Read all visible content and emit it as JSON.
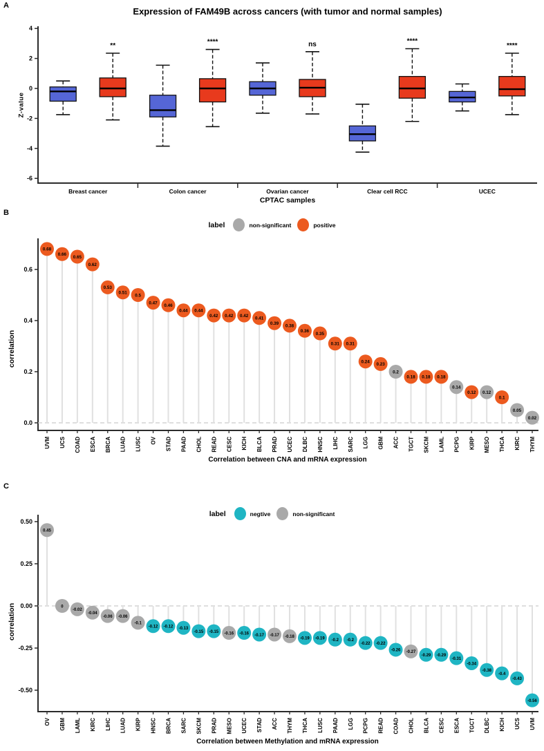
{
  "chart_data": [
    {
      "panel_label": "A",
      "type": "boxplot",
      "title": "Expression of FAM49B across cancers (with tumor and normal samples)",
      "ylabel": "Z-value",
      "xlabel": "CPTAC samples",
      "yticks": [
        4,
        2,
        0,
        -2,
        -4,
        -6
      ],
      "ylim": [
        4.3,
        -6.3
      ],
      "colors": {
        "normal": "#5566D6",
        "tumor": "#E83A1D"
      },
      "groups": [
        {
          "name": "Breast cancer",
          "significance": "**",
          "normal": {
            "low": -1.75,
            "q1": -0.85,
            "median": -0.2,
            "q3": 0.1,
            "high": 0.5
          },
          "tumor": {
            "low": -2.1,
            "q1": -0.55,
            "median": 0.0,
            "q3": 0.7,
            "high": 2.35
          }
        },
        {
          "name": "Colon cancer",
          "significance": "****",
          "normal": {
            "low": -3.85,
            "q1": -1.9,
            "median": -1.45,
            "q3": -0.45,
            "high": 1.55
          },
          "tumor": {
            "low": -2.55,
            "q1": -0.9,
            "median": 0.0,
            "q3": 0.65,
            "high": 2.6
          }
        },
        {
          "name": "Ovarian cancer",
          "significance": "ns",
          "normal": {
            "low": -1.65,
            "q1": -0.45,
            "median": 0.0,
            "q3": 0.45,
            "high": 1.7
          },
          "tumor": {
            "low": -1.7,
            "q1": -0.55,
            "median": 0.05,
            "q3": 0.6,
            "high": 2.45
          }
        },
        {
          "name": "Clear cell RCC",
          "significance": "****",
          "normal": {
            "low": -4.25,
            "q1": -3.5,
            "median": -3.05,
            "q3": -2.5,
            "high": -1.05
          },
          "tumor": {
            "low": -2.2,
            "q1": -0.65,
            "median": 0.0,
            "q3": 0.8,
            "high": 2.65
          }
        },
        {
          "name": "UCEC",
          "significance": "****",
          "normal": {
            "low": -1.5,
            "q1": -0.9,
            "median": -0.6,
            "q3": -0.2,
            "high": 0.3
          },
          "tumor": {
            "low": -1.75,
            "q1": -0.5,
            "median": -0.05,
            "q3": 0.8,
            "high": 2.35
          }
        }
      ]
    },
    {
      "panel_label": "B",
      "type": "lollipop",
      "legend": {
        "title": "label",
        "items": [
          {
            "label": "non-significant",
            "color": "#A9A9A9"
          },
          {
            "label": "positive",
            "color": "#EC5A1F"
          }
        ]
      },
      "ylabel": "correlation",
      "xlabel": "Correlation between CNA and mRNA expression",
      "ytick_labels": [
        "0.0",
        "0.2",
        "0.4",
        "0.6"
      ],
      "ytick_values": [
        0,
        0.2,
        0.4,
        0.6
      ],
      "colors": {
        "sig": "#EC5A1F",
        "ns": "#A9A9A9"
      },
      "categories": [
        "UVM",
        "UCS",
        "COAD",
        "ESCA",
        "BRCA",
        "LUAD",
        "LUSC",
        "OV",
        "STAD",
        "PAAD",
        "CHOL",
        "READ",
        "CESC",
        "KICH",
        "BLCA",
        "PRAD",
        "UCEC",
        "DLBC",
        "HNSC",
        "LIHC",
        "SARC",
        "LGG",
        "GBM",
        "ACC",
        "TGCT",
        "SKCM",
        "LAML",
        "PCPG",
        "KIRP",
        "MESO",
        "THCA",
        "KIRC",
        "THYM"
      ],
      "values": [
        0.68,
        0.66,
        0.65,
        0.62,
        0.53,
        0.51,
        0.5,
        0.47,
        0.46,
        0.44,
        0.44,
        0.42,
        0.42,
        0.42,
        0.41,
        0.39,
        0.38,
        0.36,
        0.35,
        0.31,
        0.31,
        0.24,
        0.23,
        0.2,
        0.18,
        0.18,
        0.18,
        0.14,
        0.12,
        0.12,
        0.1,
        0.05,
        0.02
      ],
      "labels": [
        "0.68",
        "0.66",
        "0.65",
        "0.62",
        "0.53",
        "0.51",
        "0.5",
        "0.47",
        "0.46",
        "0.44",
        "0.44",
        "0.42",
        "0.42",
        "0.42",
        "0.41",
        "0.39",
        "0.38",
        "0.36",
        "0.35",
        "0.31",
        "0.31",
        "0.24",
        "0.23",
        "0.2",
        "0.18",
        "0.18",
        "0.18",
        "0.14",
        "0.12",
        "0.12",
        "0.1",
        "0.05",
        "0.02"
      ],
      "point_class": [
        "pos",
        "pos",
        "pos",
        "pos",
        "pos",
        "pos",
        "pos",
        "pos",
        "pos",
        "pos",
        "pos",
        "pos",
        "pos",
        "pos",
        "pos",
        "pos",
        "pos",
        "pos",
        "pos",
        "pos",
        "pos",
        "pos",
        "pos",
        "ns",
        "pos",
        "pos",
        "pos",
        "ns",
        "pos",
        "ns",
        "pos",
        "ns",
        "ns"
      ]
    },
    {
      "panel_label": "C",
      "type": "lollipop",
      "legend": {
        "title": "label",
        "items": [
          {
            "label": "negtive",
            "color": "#1FB5C3"
          },
          {
            "label": "non-significant",
            "color": "#A9A9A9"
          }
        ]
      },
      "ylabel": "correlation",
      "xlabel": "Correlation between Methylation and mRNA expression",
      "ytick_labels": [
        "0.50",
        "0.25",
        "0.00",
        "-0.25",
        "-0.50"
      ],
      "ytick_values": [
        0.5,
        0.25,
        0,
        -0.25,
        -0.5
      ],
      "colors": {
        "sig": "#1FB5C3",
        "ns": "#A9A9A9"
      },
      "categories": [
        "OV",
        "GBM",
        "LAML",
        "KIRC",
        "LIHC",
        "LUAD",
        "KIRP",
        "HNSC",
        "BRCA",
        "SARC",
        "SKCM",
        "PRAD",
        "MESO",
        "UCEC",
        "STAD",
        "ACC",
        "THYM",
        "THCA",
        "LUSC",
        "PAAD",
        "LGG",
        "PCPG",
        "READ",
        "COAD",
        "CHOL",
        "BLCA",
        "CESC",
        "ESCA",
        "TGCT",
        "DLBC",
        "KICH",
        "UCS",
        "UVM"
      ],
      "values": [
        0.45,
        0,
        -0.02,
        -0.04,
        -0.06,
        -0.06,
        -0.1,
        -0.12,
        -0.12,
        -0.13,
        -0.15,
        -0.15,
        -0.16,
        -0.16,
        -0.17,
        -0.17,
        -0.18,
        -0.19,
        -0.19,
        -0.2,
        -0.2,
        -0.22,
        -0.22,
        -0.26,
        -0.27,
        -0.29,
        -0.29,
        -0.31,
        -0.34,
        -0.38,
        -0.4,
        -0.43,
        -0.56
      ],
      "labels": [
        "0.45",
        "0",
        "-0.02",
        "-0.04",
        "-0.06",
        "-0.06",
        "-0.1",
        "-0.12",
        "-0.12",
        "-0.13",
        "-0.15",
        "-0.15",
        "-0.16",
        "-0.16",
        "-0.17",
        "-0.17",
        "-0.18",
        "-0.19",
        "-0.19",
        "-0.2",
        "-0.2",
        "-0.22",
        "-0.22",
        "-0.26",
        "-0.27",
        "-0.29",
        "-0.29",
        "-0.31",
        "-0.34",
        "-0.38",
        "-0.4",
        "-0.43",
        "-0.56"
      ],
      "point_class": [
        "ns",
        "ns",
        "ns",
        "ns",
        "ns",
        "ns",
        "ns",
        "neg",
        "neg",
        "neg",
        "neg",
        "neg",
        "ns",
        "neg",
        "neg",
        "ns",
        "ns",
        "neg",
        "neg",
        "neg",
        "neg",
        "neg",
        "neg",
        "neg",
        "ns",
        "neg",
        "neg",
        "neg",
        "neg",
        "neg",
        "neg",
        "neg",
        "neg"
      ]
    }
  ]
}
